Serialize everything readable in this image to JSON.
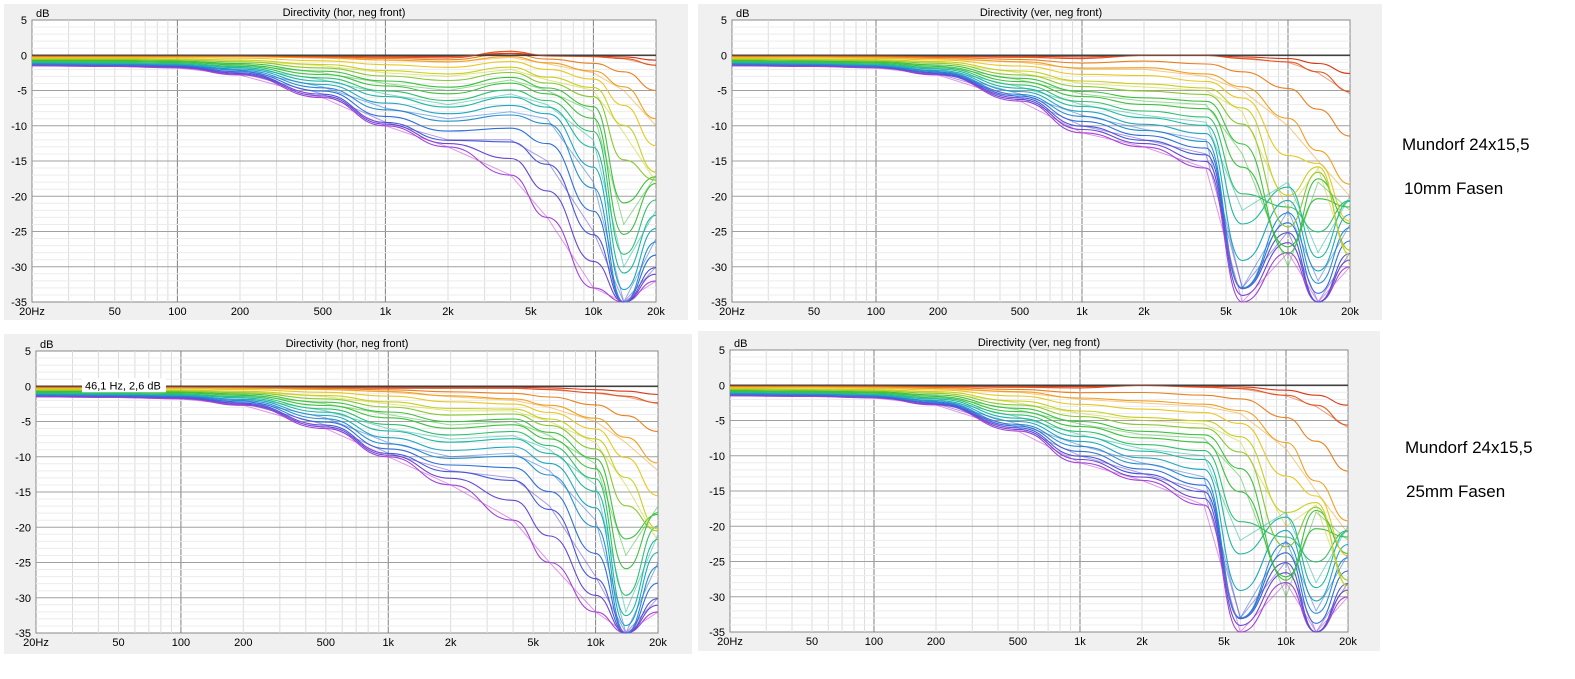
{
  "charts": [
    {
      "chart_data": {
        "type": "line",
        "title": "Directivity (hor, neg front)",
        "ylabel": "dB",
        "xscale": "log",
        "xlim": [
          20,
          20000
        ],
        "ylim": [
          -35,
          5
        ],
        "grid": true,
        "x_ticks": [
          "20Hz",
          "50",
          "100",
          "200",
          "500",
          "1k",
          "2k",
          "5k",
          "10k",
          "20k"
        ],
        "y_ticks": [
          "5",
          "0",
          "-5",
          "-10",
          "-15",
          "-20",
          "-25",
          "-30",
          "-35"
        ],
        "series_count": 18,
        "x": [
          20,
          50,
          100,
          200,
          500,
          1000,
          2000,
          4000,
          6000,
          10000,
          14000,
          20000
        ],
        "series": [
          {
            "values": [
              0,
              0,
              0,
              0,
              0,
              0,
              0,
              0,
              0,
              0,
              0,
              0
            ],
            "color": "#404040"
          },
          {
            "values": [
              -0.1,
              -0.1,
              -0.1,
              -0.1,
              -0.2,
              -0.3,
              -0.4,
              0.6,
              -0.1,
              -0.2,
              -0.5,
              -1.5
            ],
            "color": "#e04c20"
          },
          {
            "values": [
              -0.2,
              -0.2,
              -0.2,
              -0.2,
              -0.4,
              -0.7,
              -1,
              -0.3,
              -1.2,
              -2.5,
              -5,
              -10
            ],
            "color": "#f0a020"
          },
          {
            "values": [
              -0.5,
              -0.5,
              -0.6,
              -0.8,
              -1.5,
              -2.5,
              -3,
              -2,
              -3.5,
              -5,
              -11,
              -18
            ],
            "color": "#c8d020"
          },
          {
            "values": [
              -0.8,
              -0.8,
              -0.9,
              -1.3,
              -2.5,
              -4,
              -5,
              -3.5,
              -5,
              -8,
              -24,
              -17
            ],
            "color": "#40c040"
          },
          {
            "values": [
              -1,
              -1.1,
              -1.2,
              -1.7,
              -3.5,
              -5.5,
              -7,
              -5.5,
              -7,
              -12,
              -30,
              -22
            ],
            "color": "#20b8a0"
          },
          {
            "values": [
              -1.2,
              -1.3,
              -1.4,
              -2.1,
              -4.5,
              -7.5,
              -9,
              -8,
              -9,
              -18,
              -35,
              -26
            ],
            "color": "#3070d8"
          },
          {
            "values": [
              -1.4,
              -1.5,
              -1.6,
              -2.5,
              -5.5,
              -9.5,
              -12,
              -12,
              -15,
              -25,
              -35,
              -30
            ],
            "color": "#6848d0"
          },
          {
            "values": [
              -1.5,
              -1.6,
              -1.8,
              -2.8,
              -6,
              -10,
              -13,
              -17,
              -23,
              -33,
              -35,
              -32
            ],
            "color": "#c840d8"
          }
        ]
      },
      "pointer_label": ""
    },
    {
      "chart_data": {
        "type": "line",
        "title": "Directivity (ver, neg front)",
        "ylabel": "dB",
        "xscale": "log",
        "xlim": [
          20,
          20000
        ],
        "ylim": [
          -35,
          5
        ],
        "grid": true,
        "x_ticks": [
          "20Hz",
          "50",
          "100",
          "200",
          "500",
          "1k",
          "2k",
          "5k",
          "10k",
          "20k"
        ],
        "y_ticks": [
          "5",
          "0",
          "-5",
          "-10",
          "-15",
          "-20",
          "-25",
          "-30",
          "-35"
        ],
        "series_count": 18,
        "x": [
          20,
          50,
          100,
          200,
          500,
          1000,
          2000,
          4000,
          6000,
          10000,
          14000,
          20000
        ],
        "series": [
          {
            "values": [
              0,
              0,
              0,
              0,
              0,
              0,
              0,
              0,
              0,
              0,
              0,
              0
            ],
            "color": "#404040"
          },
          {
            "values": [
              -0.1,
              -0.1,
              -0.1,
              -0.2,
              -0.3,
              -0.5,
              0,
              0,
              -0.5,
              -1,
              -2.5,
              -5.5
            ],
            "color": "#e04c20"
          },
          {
            "values": [
              -0.2,
              -0.2,
              -0.3,
              -0.5,
              -1,
              -2,
              -2,
              -3,
              -5,
              -10,
              -15,
              -20
            ],
            "color": "#f0a020"
          },
          {
            "values": [
              -0.5,
              -0.6,
              -0.7,
              -1,
              -2.5,
              -4,
              -4.5,
              -5,
              -8,
              -22,
              -16,
              -30
            ],
            "color": "#c8d020"
          },
          {
            "values": [
              -0.8,
              -0.9,
              -1,
              -1.5,
              -3.5,
              -5.5,
              -6.5,
              -7,
              -14,
              -30,
              -18,
              -22
            ],
            "color": "#40c040"
          },
          {
            "values": [
              -1,
              -1.1,
              -1.3,
              -1.9,
              -4.5,
              -7,
              -8.5,
              -9.5,
              -22,
              -18,
              -28,
              -20
            ],
            "color": "#20b8a0"
          },
          {
            "values": [
              -1.2,
              -1.3,
              -1.5,
              -2.3,
              -5.5,
              -8.5,
              -10.5,
              -12,
              -33,
              -22,
              -32,
              -24
            ],
            "color": "#3070d8"
          },
          {
            "values": [
              -1.4,
              -1.5,
              -1.7,
              -2.6,
              -6,
              -10,
              -12,
              -14,
              -33,
              -25,
              -35,
              -28
            ],
            "color": "#6848d0"
          },
          {
            "values": [
              -1.5,
              -1.6,
              -1.8,
              -2.8,
              -6.5,
              -11,
              -13,
              -16,
              -35,
              -28,
              -35,
              -30
            ],
            "color": "#c840d8"
          }
        ]
      },
      "pointer_label": ""
    },
    {
      "chart_data": {
        "type": "line",
        "title": "Directivity (hor, neg front)",
        "ylabel": "dB",
        "xscale": "log",
        "xlim": [
          20,
          20000
        ],
        "ylim": [
          -35,
          5
        ],
        "grid": true,
        "x_ticks": [
          "20Hz",
          "50",
          "100",
          "200",
          "500",
          "1k",
          "2k",
          "5k",
          "10k",
          "20k"
        ],
        "y_ticks": [
          "5",
          "0",
          "-5",
          "-10",
          "-15",
          "-20",
          "-25",
          "-30",
          "-35"
        ],
        "series_count": 18,
        "x": [
          20,
          50,
          100,
          200,
          500,
          1000,
          2000,
          4000,
          6000,
          10000,
          14000,
          20000
        ],
        "series": [
          {
            "values": [
              0,
              0,
              0,
              0,
              0,
              0,
              0,
              0,
              0,
              0,
              0,
              0
            ],
            "color": "#404040"
          },
          {
            "values": [
              -0.1,
              -0.1,
              -0.1,
              -0.1,
              -0.2,
              -0.3,
              -0.3,
              -0.3,
              -0.5,
              -1,
              -1.5,
              -2.5
            ],
            "color": "#e04c20"
          },
          {
            "values": [
              -0.2,
              -0.2,
              -0.2,
              -0.3,
              -0.5,
              -0.8,
              -1.5,
              -2,
              -3,
              -5,
              -8,
              -12
            ],
            "color": "#f0a020"
          },
          {
            "values": [
              -0.5,
              -0.5,
              -0.6,
              -0.8,
              -1.5,
              -2.5,
              -3.5,
              -3.5,
              -5,
              -8,
              -14,
              -22
            ],
            "color": "#c8d020"
          },
          {
            "values": [
              -0.8,
              -0.8,
              -0.9,
              -1.2,
              -2.5,
              -4,
              -5.5,
              -5,
              -7,
              -11,
              -24,
              -17
            ],
            "color": "#40c040"
          },
          {
            "values": [
              -1,
              -1.1,
              -1.2,
              -1.6,
              -3.5,
              -6,
              -7.5,
              -7,
              -9,
              -14,
              -32,
              -21
            ],
            "color": "#20b8a0"
          },
          {
            "values": [
              -1.2,
              -1.3,
              -1.4,
              -2,
              -4.5,
              -8,
              -10,
              -9.5,
              -12,
              -19,
              -35,
              -25
            ],
            "color": "#3070d8"
          },
          {
            "values": [
              -1.4,
              -1.5,
              -1.6,
              -2.4,
              -5.5,
              -9.5,
              -12,
              -13,
              -17,
              -27,
              -35,
              -30
            ],
            "color": "#6848d0"
          },
          {
            "values": [
              -1.5,
              -1.6,
              -1.8,
              -2.7,
              -6,
              -10,
              -14,
              -19,
              -25,
              -32,
              -35,
              -32
            ],
            "color": "#c840d8"
          }
        ]
      },
      "pointer_label": "46,1 Hz, 2,6 dB"
    },
    {
      "chart_data": {
        "type": "line",
        "title": "Directivity (ver, neg front)",
        "ylabel": "dB",
        "xscale": "log",
        "xlim": [
          20,
          20000
        ],
        "ylim": [
          -35,
          5
        ],
        "grid": true,
        "x_ticks": [
          "20Hz",
          "50",
          "100",
          "200",
          "500",
          "1k",
          "2k",
          "5k",
          "10k",
          "20k"
        ],
        "y_ticks": [
          "5",
          "0",
          "-5",
          "-10",
          "-15",
          "-20",
          "-25",
          "-30",
          "-35"
        ],
        "series_count": 18,
        "x": [
          20,
          50,
          100,
          200,
          500,
          1000,
          2000,
          4000,
          6000,
          10000,
          14000,
          20000
        ],
        "series": [
          {
            "values": [
              0,
              0,
              0,
              0,
              0,
              0,
              0,
              0,
              0,
              0,
              0,
              0
            ],
            "color": "#404040"
          },
          {
            "values": [
              -0.1,
              -0.1,
              -0.1,
              -0.2,
              -0.3,
              -0.4,
              0,
              -0.3,
              -0.5,
              -1.5,
              -3,
              -6
            ],
            "color": "#e04c20"
          },
          {
            "values": [
              -0.2,
              -0.2,
              -0.3,
              -0.5,
              -1,
              -2,
              -2.5,
              -3,
              -4,
              -9,
              -15,
              -21
            ],
            "color": "#f0a020"
          },
          {
            "values": [
              -0.5,
              -0.6,
              -0.7,
              -1,
              -2.5,
              -4,
              -5,
              -5.5,
              -8,
              -20,
              -17,
              -30
            ],
            "color": "#c8d020"
          },
          {
            "values": [
              -0.8,
              -0.9,
              -1,
              -1.5,
              -3.5,
              -5.5,
              -7,
              -7.5,
              -13,
              -30,
              -18,
              -22
            ],
            "color": "#40c040"
          },
          {
            "values": [
              -1,
              -1.1,
              -1.3,
              -1.9,
              -4.5,
              -7,
              -9,
              -10,
              -22,
              -18,
              -28,
              -20
            ],
            "color": "#20b8a0"
          },
          {
            "values": [
              -1.2,
              -1.3,
              -1.5,
              -2.3,
              -5.5,
              -8.5,
              -11,
              -13,
              -33,
              -22,
              -32,
              -24
            ],
            "color": "#3070d8"
          },
          {
            "values": [
              -1.4,
              -1.5,
              -1.7,
              -2.6,
              -6,
              -10,
              -12.5,
              -15,
              -33,
              -25,
              -35,
              -28
            ],
            "color": "#6848d0"
          },
          {
            "values": [
              -1.5,
              -1.6,
              -1.8,
              -2.8,
              -6.5,
              -11,
              -13.5,
              -17,
              -35,
              -28,
              -35,
              -30
            ],
            "color": "#c840d8"
          }
        ]
      },
      "pointer_label": ""
    }
  ],
  "side_labels": [
    {
      "model": "Mundorf 24x15,5",
      "variant": "10mm Fasen"
    },
    {
      "model": "Mundorf 24x15,5",
      "variant": "25mm Fasen"
    }
  ]
}
